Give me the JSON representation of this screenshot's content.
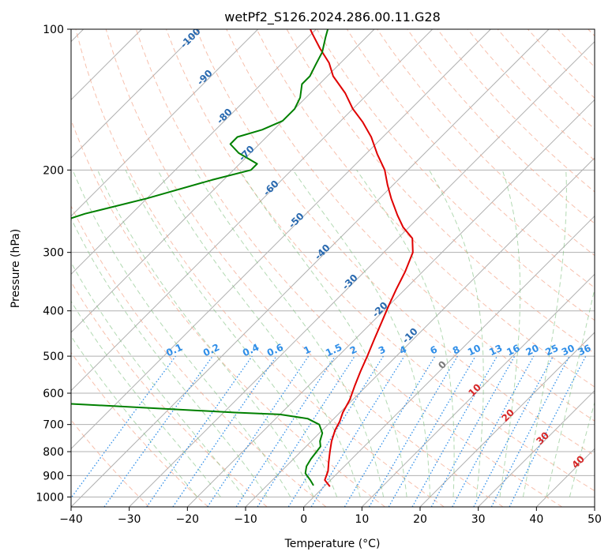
{
  "chart_data": {
    "type": "line",
    "title": "wetPf2_S126.2024.286.00.11.G28",
    "xlabel": "Temperature (°C)",
    "ylabel": "Pressure (hPa)",
    "xlim": [
      -40,
      50
    ],
    "ylim": [
      1050,
      100
    ],
    "y_scale": "log",
    "grid": true,
    "x_ticks": [
      "−40",
      "−30",
      "−20",
      "−10",
      "0",
      "10",
      "20",
      "30",
      "40",
      "50"
    ],
    "y_ticks": [
      "100",
      "200",
      "300",
      "400",
      "500",
      "600",
      "700",
      "800",
      "900",
      "1000"
    ],
    "skew_deg": 45,
    "dry_adiabat_labels": [
      "-100",
      "-90",
      "-80",
      "-70",
      "-60",
      "-50",
      "-40",
      "-30",
      "-20",
      "-10"
    ],
    "mixing_ratio_labels": [
      "0.1",
      "0.2",
      "0.4",
      "0.6",
      "1",
      "1.5",
      "2",
      "3",
      "4",
      "6",
      "8",
      "10",
      "13",
      "16",
      "20",
      "25",
      "30",
      "36"
    ],
    "moist_adiabat_labels": [
      "0",
      "10",
      "20",
      "30",
      "40"
    ],
    "series": [
      {
        "color": "#e00000",
        "points": [
          [
            1,
            950
          ],
          [
            -1,
            920
          ],
          [
            -2,
            880
          ],
          [
            -3.5,
            840
          ],
          [
            -5,
            800
          ],
          [
            -6.5,
            760
          ],
          [
            -7.8,
            720
          ],
          [
            -8.5,
            690
          ],
          [
            -9.5,
            660
          ],
          [
            -10.5,
            620
          ],
          [
            -12,
            580
          ],
          [
            -13.5,
            540
          ],
          [
            -15,
            500
          ],
          [
            -16.7,
            460
          ],
          [
            -18.5,
            420
          ],
          [
            -20,
            390
          ],
          [
            -21.5,
            360
          ],
          [
            -23,
            330
          ],
          [
            -25,
            300
          ],
          [
            -27.5,
            280
          ],
          [
            -31,
            265
          ],
          [
            -34,
            250
          ],
          [
            -38,
            230
          ],
          [
            -41,
            215
          ],
          [
            -44,
            200
          ],
          [
            -48,
            185
          ],
          [
            -52,
            170
          ],
          [
            -56,
            158
          ],
          [
            -60,
            148
          ],
          [
            -64,
            137
          ],
          [
            -69,
            126
          ],
          [
            -72,
            118
          ],
          [
            -76,
            110
          ],
          [
            -80,
            102
          ],
          [
            -81,
            100
          ]
        ]
      },
      {
        "color": "#008000",
        "points": [
          [
            -2,
            945
          ],
          [
            -3.5,
            920
          ],
          [
            -5.5,
            890
          ],
          [
            -6.5,
            860
          ],
          [
            -7,
            830
          ],
          [
            -7.3,
            800
          ],
          [
            -7.5,
            780
          ],
          [
            -8.5,
            760
          ],
          [
            -9.5,
            730
          ],
          [
            -11.5,
            700
          ],
          [
            -14.5,
            680
          ],
          [
            -20,
            666
          ],
          [
            -28,
            660
          ],
          [
            -60,
            630
          ],
          [
            -110,
            600
          ],
          [
            -180,
            400
          ],
          [
            -166,
            372
          ],
          [
            -161,
            360
          ],
          [
            -164,
            350
          ],
          [
            -175,
            340
          ],
          [
            -160,
            320
          ],
          [
            -136,
            306
          ],
          [
            -111,
            289
          ],
          [
            -96,
            273
          ],
          [
            -92,
            262
          ],
          [
            -88,
            248
          ],
          [
            -80,
            230
          ],
          [
            -72,
            210
          ],
          [
            -67,
            200
          ],
          [
            -67,
            194
          ],
          [
            -72,
            184
          ],
          [
            -75,
            176
          ],
          [
            -75,
            170
          ],
          [
            -72,
            164
          ],
          [
            -70,
            157
          ],
          [
            -70,
            148
          ],
          [
            -71,
            140
          ],
          [
            -73,
            131
          ],
          [
            -73,
            126
          ],
          [
            -74,
            119
          ],
          [
            -75,
            112
          ],
          [
            -77,
            104
          ],
          [
            -78,
            100
          ]
        ]
      }
    ]
  }
}
